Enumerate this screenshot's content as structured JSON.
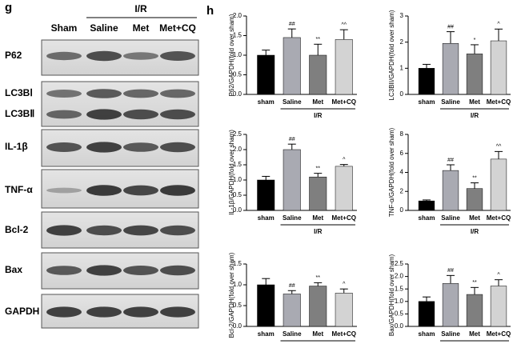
{
  "blot": {
    "panel_label": "g",
    "group_label": "I/R",
    "lanes": [
      "Sham",
      "Saline",
      "Met",
      "Met+CQ"
    ],
    "rows": [
      "P62",
      "LC3BⅠ",
      "LC3BⅡ",
      "IL-1β",
      "TNF-α",
      "Bcl-2",
      "Bax",
      "GAPDH"
    ]
  },
  "chart_panel_label": "h",
  "chart_data": [
    {
      "type": "bar",
      "ylabel": "P62/GAPDH(fold over sham)",
      "categories": [
        "sham",
        "Saline",
        "Met",
        "Met+CQ"
      ],
      "group_label": "I/R",
      "values": [
        1.0,
        1.45,
        1.0,
        1.4
      ],
      "errors": [
        0.13,
        0.22,
        0.28,
        0.25
      ],
      "annotations": [
        null,
        "##",
        "**",
        "^^"
      ],
      "colors": [
        "#000000",
        "#a9aab2",
        "#7f7f7f",
        "#d3d3d3"
      ],
      "ylim": [
        0,
        2
      ],
      "yticks": [
        {
          "value": 0,
          "label": "0.0"
        },
        0.5,
        {
          "value": 1,
          "label": "1.0"
        },
        1.5,
        {
          "value": 2,
          "label": "2.0"
        }
      ]
    },
    {
      "type": "bar",
      "ylabel": "LC3BII/GAPDH(fold over sham)",
      "categories": [
        "sham",
        "Saline",
        "Met",
        "Met+CQ"
      ],
      "group_label": "I/R",
      "values": [
        1.0,
        1.95,
        1.55,
        2.05
      ],
      "errors": [
        0.15,
        0.45,
        0.35,
        0.45
      ],
      "annotations": [
        null,
        "##",
        "*",
        "^"
      ],
      "colors": [
        "#000000",
        "#a9aab2",
        "#7f7f7f",
        "#d3d3d3"
      ],
      "ylim": [
        0,
        3
      ],
      "yticks": [
        0,
        1,
        2,
        3
      ]
    },
    {
      "type": "bar",
      "ylabel": "IL-1β/GAPDH(fold over sham)",
      "categories": [
        "sham",
        "Saline",
        "Met",
        "Met+CQ"
      ],
      "group_label": "I/R",
      "values": [
        1.0,
        2.0,
        1.1,
        1.45
      ],
      "errors": [
        0.12,
        0.18,
        0.12,
        0.06
      ],
      "annotations": [
        null,
        "##",
        "**",
        "^"
      ],
      "colors": [
        "#000000",
        "#a9aab2",
        "#7f7f7f",
        "#d3d3d3"
      ],
      "ylim": [
        0,
        2.5
      ],
      "yticks": [
        {
          "value": 0,
          "label": "0.0"
        },
        0.5,
        {
          "value": 1,
          "label": "1.0"
        },
        1.5,
        {
          "value": 2,
          "label": "2.0"
        },
        2.5
      ]
    },
    {
      "type": "bar",
      "ylabel": "TNF-α/GAPDH(fold over sham)",
      "categories": [
        "sham",
        "Saline",
        "Met",
        "Met+CQ"
      ],
      "group_label": "I/R",
      "values": [
        1.0,
        4.2,
        2.3,
        5.4
      ],
      "errors": [
        0.1,
        0.6,
        0.6,
        0.8
      ],
      "annotations": [
        null,
        "##",
        "**",
        "^^"
      ],
      "colors": [
        "#000000",
        "#a9aab2",
        "#7f7f7f",
        "#d3d3d3"
      ],
      "ylim": [
        0,
        8
      ],
      "yticks": [
        0,
        2,
        4,
        6,
        8
      ]
    },
    {
      "type": "bar",
      "ylabel": "Bcl-2/GAPDH(fold over sham)",
      "categories": [
        "sham",
        "Saline",
        "Met",
        "Met+CQ"
      ],
      "group_label": "I/R",
      "values": [
        1.0,
        0.78,
        0.97,
        0.8
      ],
      "errors": [
        0.15,
        0.08,
        0.08,
        0.1
      ],
      "annotations": [
        null,
        "##",
        "**",
        "^"
      ],
      "colors": [
        "#000000",
        "#a9aab2",
        "#7f7f7f",
        "#d3d3d3"
      ],
      "ylim": [
        0,
        1.5
      ],
      "yticks": [
        {
          "value": 0,
          "label": "0.0"
        },
        0.5,
        {
          "value": 1,
          "label": "1.0"
        },
        1.5
      ]
    },
    {
      "type": "bar",
      "ylabel": "Bax/GAPDH(fold over sham)",
      "categories": [
        "sham",
        "Saline",
        "Met",
        "Met+CQ"
      ],
      "group_label": "I/R",
      "values": [
        1.0,
        1.72,
        1.28,
        1.62
      ],
      "errors": [
        0.18,
        0.32,
        0.28,
        0.25
      ],
      "annotations": [
        null,
        "##",
        "**",
        "^"
      ],
      "colors": [
        "#000000",
        "#a9aab2",
        "#7f7f7f",
        "#d3d3d3"
      ],
      "ylim": [
        0,
        2.5
      ],
      "yticks": [
        {
          "value": 0,
          "label": "0.0"
        },
        0.5,
        {
          "value": 1,
          "label": "1.0"
        },
        1.5,
        {
          "value": 2,
          "label": "2.0"
        },
        2.5
      ]
    }
  ]
}
